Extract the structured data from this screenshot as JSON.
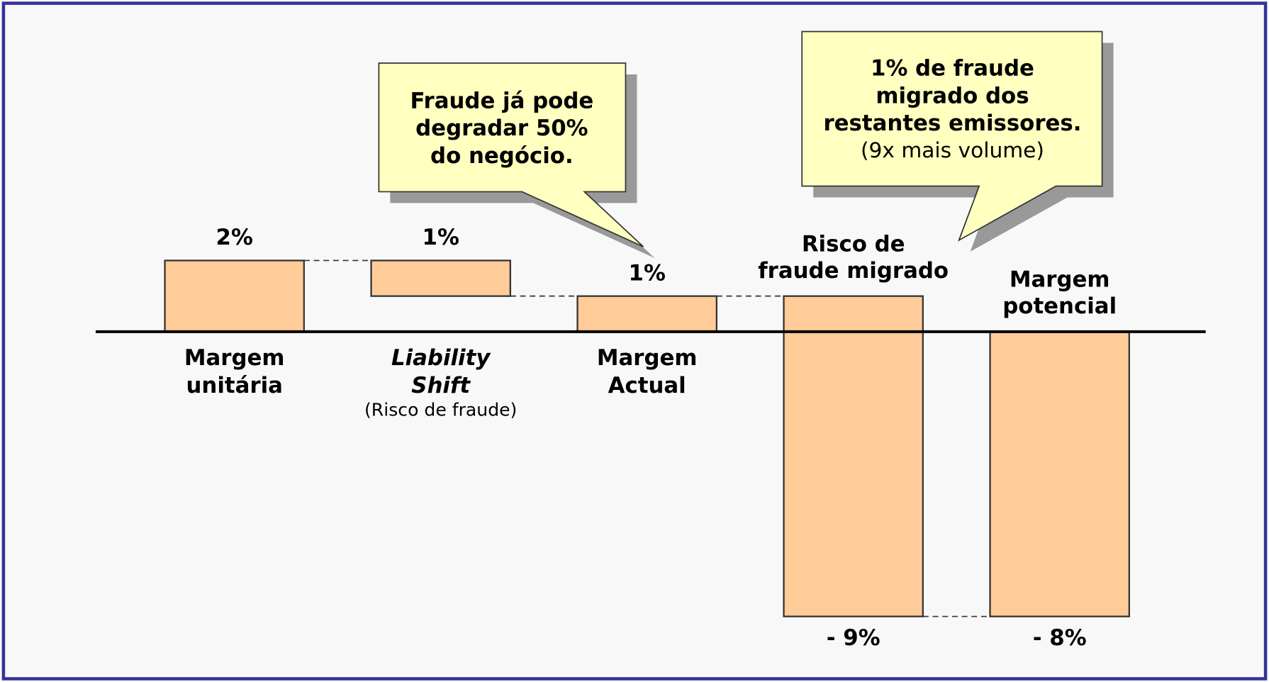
{
  "chart_data": {
    "type": "waterfall",
    "categories": [
      [
        "Margem",
        "unitária"
      ],
      [
        "Liability",
        "Shift"
      ],
      [
        "Margem",
        "Actual"
      ],
      [
        "Risco de",
        "fraude migrado"
      ],
      [
        "Margem",
        "potencial"
      ]
    ],
    "category_notes": [
      null,
      "(Risco de fraude)",
      null,
      null,
      null
    ],
    "values": [
      2,
      -1,
      1,
      -9,
      -8
    ],
    "value_labels": [
      "2%",
      "1%",
      "1%",
      "- 9%",
      "- 8%"
    ],
    "ylim": [
      -9,
      2.5
    ],
    "color": "#ffcc99",
    "annotations": [
      {
        "lines": [
          "Fraude já pode",
          "degradar 50%",
          "do negócio."
        ]
      },
      {
        "lines": [
          "1% de fraude",
          "migrado dos",
          "restantes emissores."
        ],
        "note": "(9x mais volume)"
      }
    ]
  }
}
